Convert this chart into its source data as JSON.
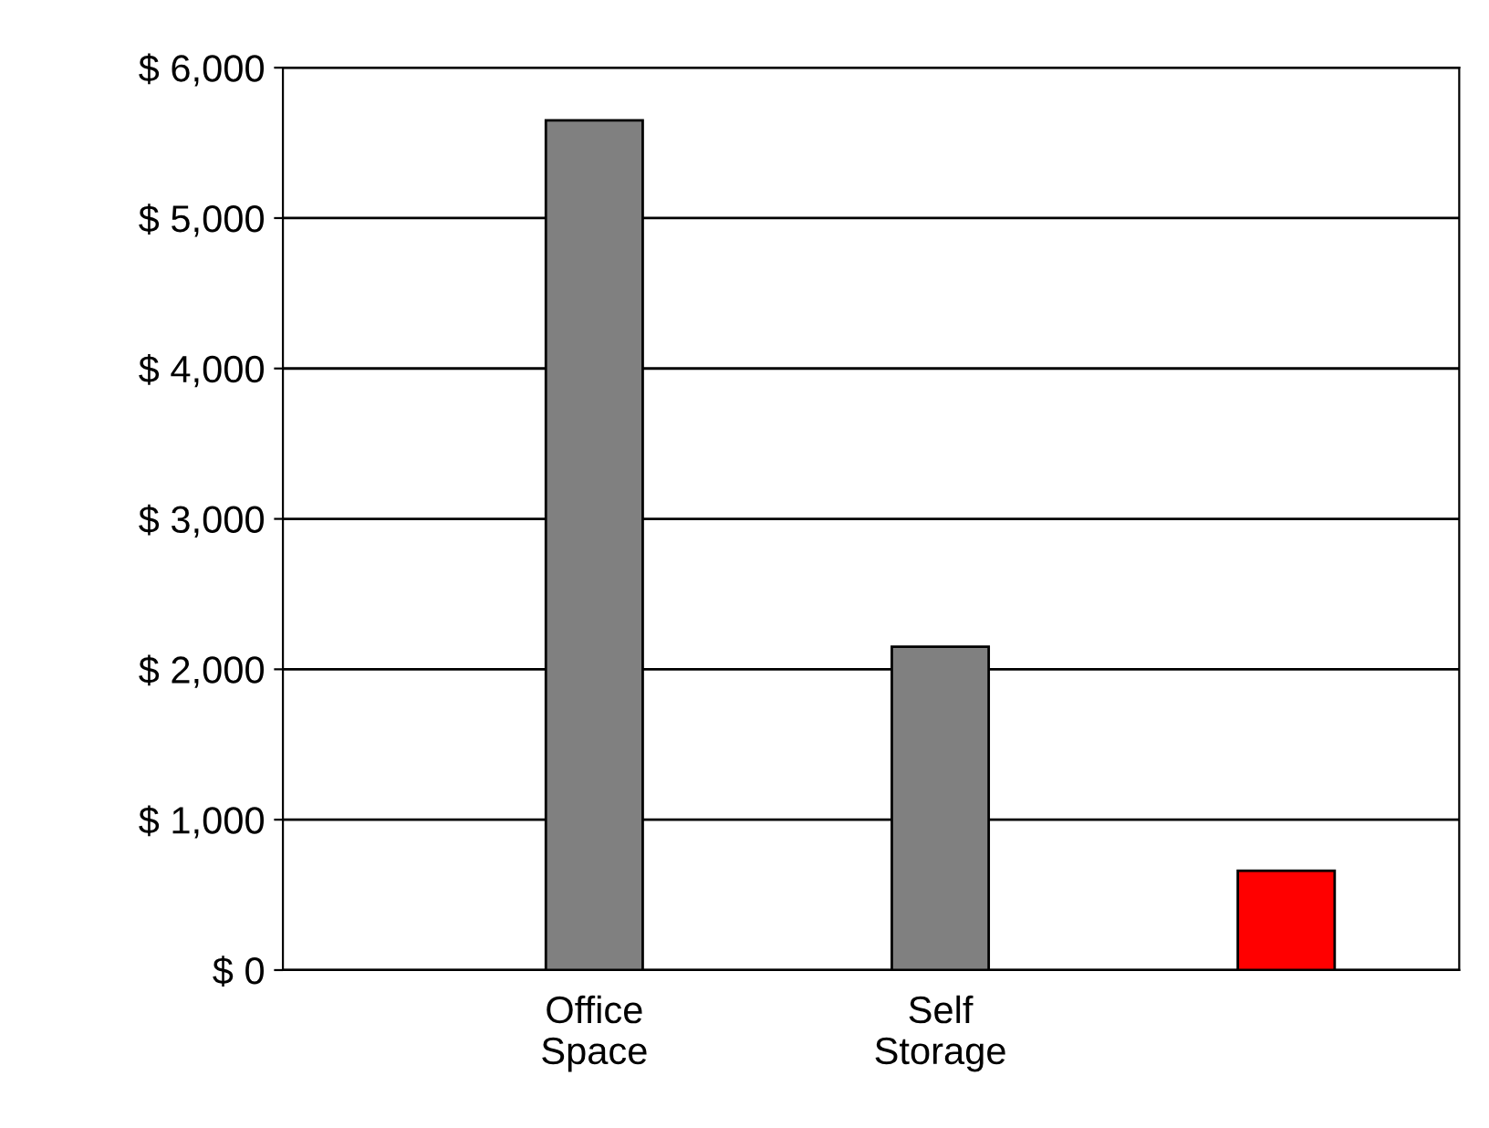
{
  "chart_data": {
    "type": "bar",
    "categories": [
      "Office\nSpace",
      "Self\nStorage",
      null
    ],
    "values": [
      5650,
      2150,
      660
    ],
    "colors": [
      "#808080",
      "#808080",
      "#ff0000"
    ],
    "ylim": [
      0,
      6000
    ],
    "yticks": [
      {
        "value": 0,
        "label": "$ 0"
      },
      {
        "value": 1000,
        "label": "$ 1,000"
      },
      {
        "value": 2000,
        "label": "$ 2,000"
      },
      {
        "value": 3000,
        "label": "$ 3,000"
      },
      {
        "value": 4000,
        "label": "$ 4,000"
      },
      {
        "value": 5000,
        "label": "$ 5,000"
      },
      {
        "value": 6000,
        "label": "$ 6,000"
      }
    ],
    "grid": "y"
  }
}
